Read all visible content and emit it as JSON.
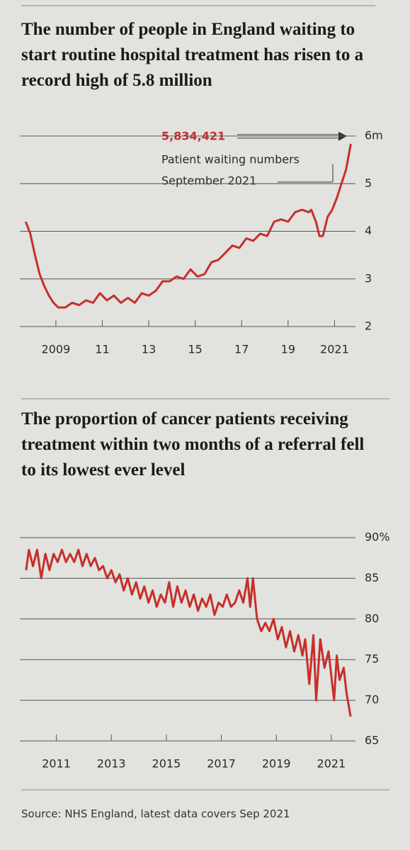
{
  "chart_data": [
    {
      "type": "line",
      "title": "The number of people in England waiting to start routine hospital treatment has risen to a record high of 5.8 million",
      "color": "#c62f2b",
      "x": [
        2007.7,
        2007.9,
        2008.1,
        2008.3,
        2008.5,
        2008.7,
        2008.9,
        2009.1,
        2009.4,
        2009.7,
        2010.0,
        2010.3,
        2010.6,
        2010.9,
        2011.2,
        2011.5,
        2011.8,
        2012.1,
        2012.4,
        2012.7,
        2013.0,
        2013.3,
        2013.6,
        2013.9,
        2014.2,
        2014.5,
        2014.8,
        2015.1,
        2015.4,
        2015.7,
        2016.0,
        2016.3,
        2016.6,
        2016.9,
        2017.2,
        2017.5,
        2017.8,
        2018.1,
        2018.4,
        2018.7,
        2019.0,
        2019.3,
        2019.6,
        2019.9,
        2020.0,
        2020.2,
        2020.35,
        2020.5,
        2020.7,
        2020.9,
        2021.1,
        2021.3,
        2021.5,
        2021.7
      ],
      "values": [
        4.2,
        3.95,
        3.5,
        3.1,
        2.85,
        2.65,
        2.5,
        2.4,
        2.4,
        2.5,
        2.45,
        2.55,
        2.5,
        2.7,
        2.55,
        2.65,
        2.5,
        2.6,
        2.5,
        2.7,
        2.65,
        2.75,
        2.95,
        2.95,
        3.05,
        3.0,
        3.2,
        3.05,
        3.1,
        3.35,
        3.4,
        3.55,
        3.7,
        3.65,
        3.85,
        3.8,
        3.95,
        3.9,
        4.2,
        4.25,
        4.2,
        4.4,
        4.45,
        4.4,
        4.45,
        4.2,
        3.9,
        3.9,
        4.3,
        4.45,
        4.7,
        5.0,
        5.3,
        5.834421
      ],
      "xlim": [
        2007.6,
        2021.75
      ],
      "xticks": [
        2009,
        {
          "value": 2011,
          "label": "11"
        },
        {
          "value": 2013,
          "label": "13"
        },
        {
          "value": 2015,
          "label": "15"
        },
        {
          "value": 2017,
          "label": "17"
        },
        {
          "value": 2019,
          "label": "19"
        },
        2021
      ],
      "ylim": [
        2,
        6
      ],
      "yticks": [
        2,
        3,
        4,
        5,
        {
          "value": 6,
          "label": "6m"
        }
      ],
      "grid": true,
      "annotation": {
        "value_label": "5,834,421",
        "lines": [
          "Patient waiting numbers",
          "September 2021"
        ]
      }
    },
    {
      "type": "line",
      "title": "The proportion of cancer patients receiving treatment within two months of a referral fell to its lowest ever level",
      "color": "#c62f2b",
      "x": [
        2009.9,
        2010.0,
        2010.15,
        2010.3,
        2010.45,
        2010.6,
        2010.75,
        2010.9,
        2011.05,
        2011.2,
        2011.35,
        2011.5,
        2011.65,
        2011.8,
        2011.95,
        2012.1,
        2012.25,
        2012.4,
        2012.55,
        2012.7,
        2012.85,
        2013.0,
        2013.15,
        2013.3,
        2013.45,
        2013.6,
        2013.75,
        2013.9,
        2014.05,
        2014.2,
        2014.35,
        2014.5,
        2014.65,
        2014.8,
        2014.95,
        2015.1,
        2015.25,
        2015.4,
        2015.55,
        2015.7,
        2015.85,
        2016.0,
        2016.15,
        2016.3,
        2016.45,
        2016.6,
        2016.75,
        2016.9,
        2017.05,
        2017.2,
        2017.35,
        2017.5,
        2017.65,
        2017.8,
        2017.95,
        2018.05,
        2018.15,
        2018.3,
        2018.45,
        2018.6,
        2018.75,
        2018.9,
        2019.05,
        2019.2,
        2019.35,
        2019.5,
        2019.65,
        2019.8,
        2019.95,
        2020.05,
        2020.2,
        2020.35,
        2020.45,
        2020.6,
        2020.75,
        2020.9,
        2021.0,
        2021.1,
        2021.2,
        2021.3,
        2021.45,
        2021.55,
        2021.7
      ],
      "values": [
        86,
        88.5,
        86.5,
        88.5,
        85,
        88,
        86,
        88,
        87,
        88.5,
        87,
        88,
        87,
        88.5,
        86.5,
        88,
        86.5,
        87.5,
        86,
        86.5,
        85,
        86,
        84.5,
        85.5,
        83.5,
        85,
        83,
        84.5,
        82.5,
        84,
        82,
        83.5,
        81.5,
        83,
        82,
        84.5,
        81.5,
        84,
        82,
        83.5,
        81.5,
        83,
        81,
        82.5,
        81.5,
        83,
        80.5,
        82,
        81.5,
        83,
        81.5,
        82,
        83.5,
        82,
        85,
        81.5,
        85,
        80,
        78.5,
        79.5,
        78.5,
        80,
        77.5,
        79,
        76.5,
        78.5,
        76,
        78,
        75.5,
        77.5,
        72,
        78,
        70,
        77.5,
        74,
        76,
        73,
        70,
        75.5,
        72.5,
        74,
        71,
        68
      ],
      "xlim": [
        2009.8,
        2021.75
      ],
      "xticks": [
        2011,
        2013,
        2015,
        2017,
        2019,
        2021
      ],
      "ylim": [
        65,
        90
      ],
      "yticks": [
        65,
        70,
        75,
        80,
        85,
        {
          "value": 90,
          "label": "90%"
        }
      ],
      "grid": true
    }
  ],
  "source": "Source: NHS England, latest data covers Sep 2021"
}
